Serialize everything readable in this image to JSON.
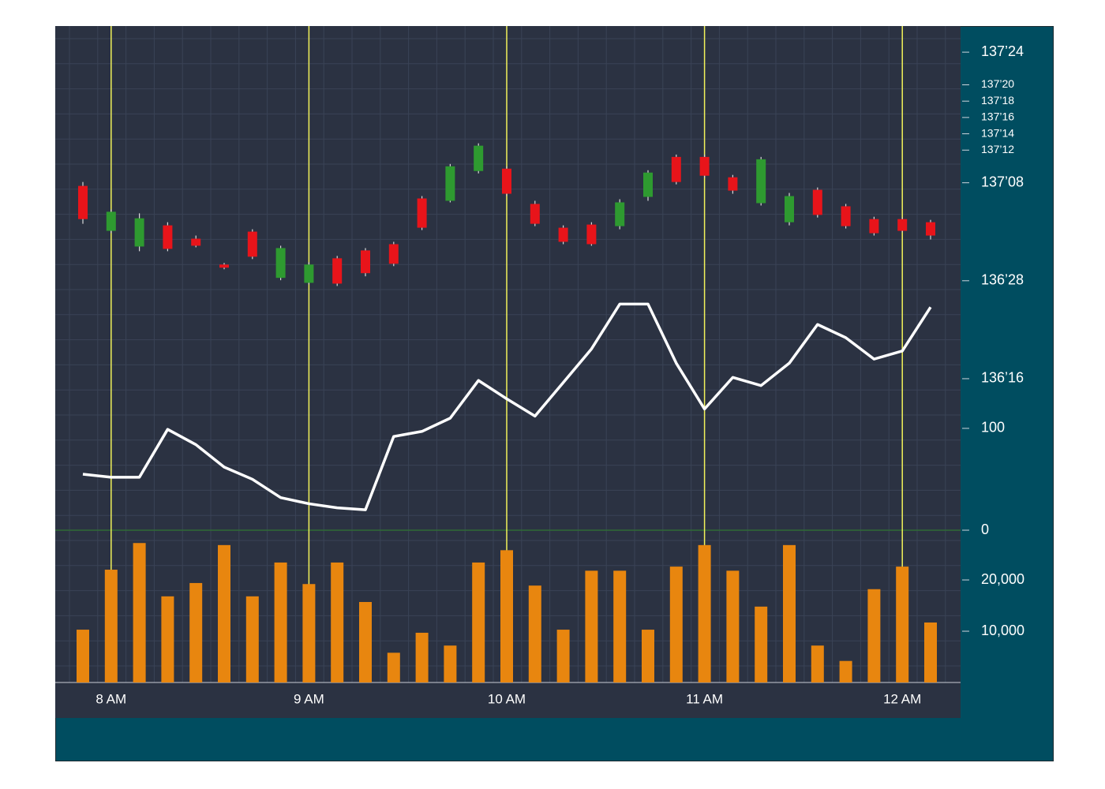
{
  "chart_data": [
    {
      "type": "candlestick",
      "categories": [
        null,
        "8 AM",
        null,
        null,
        null,
        null,
        null,
        null,
        "9 AM",
        null,
        null,
        null,
        null,
        null,
        null,
        "10 AM",
        null,
        null,
        null,
        null,
        null,
        null,
        "11 AM",
        null,
        null,
        null,
        null,
        null,
        null,
        "12 AM",
        null
      ],
      "open": [
        137.238,
        137.066,
        137.006,
        137.087,
        137.036,
        136.937,
        137.063,
        136.886,
        136.867,
        136.961,
        136.991,
        137.015,
        137.19,
        137.181,
        137.295,
        137.304,
        137.169,
        137.078,
        137.09,
        137.084,
        137.196,
        137.349,
        137.349,
        137.271,
        137.172,
        137.099,
        137.223,
        137.16,
        137.111,
        137.111,
        137.099
      ],
      "high": [
        137.253,
        137.148,
        137.133,
        137.099,
        137.048,
        136.943,
        137.072,
        137.009,
        136.946,
        136.97,
        137.0,
        137.024,
        137.199,
        137.322,
        137.401,
        137.313,
        137.181,
        137.087,
        137.099,
        137.187,
        137.298,
        137.358,
        137.358,
        137.28,
        137.349,
        137.211,
        137.232,
        137.169,
        137.12,
        137.117,
        137.108
      ],
      "low": [
        137.093,
        137.057,
        136.988,
        136.988,
        137.003,
        136.919,
        136.958,
        136.877,
        136.861,
        136.855,
        136.892,
        136.931,
        137.069,
        137.175,
        137.286,
        137.199,
        137.084,
        137.015,
        137.009,
        137.072,
        137.181,
        137.244,
        137.268,
        137.208,
        137.163,
        137.087,
        137.117,
        137.075,
        137.048,
        137.06,
        137.033
      ],
      "close": [
        137.111,
        137.139,
        137.114,
        136.997,
        137.009,
        136.925,
        136.967,
        137.0,
        136.937,
        136.864,
        136.904,
        136.94,
        137.078,
        137.313,
        137.392,
        137.208,
        137.093,
        137.024,
        137.015,
        137.175,
        137.289,
        137.253,
        137.277,
        137.22,
        137.34,
        137.199,
        137.127,
        137.084,
        137.057,
        137.066,
        137.048
      ],
      "up_color": "#2e9a30",
      "down_color": "#e8141a",
      "ylim": [
        135.92,
        137.85
      ],
      "yticks": [
        {
          "value": 137.75,
          "label": "137’24"
        },
        {
          "value": 137.625,
          "label": "137’20"
        },
        {
          "value": 137.5625,
          "label": "137’18"
        },
        {
          "value": 137.5,
          "label": "137’16"
        },
        {
          "value": 137.4375,
          "label": "137’14"
        },
        {
          "value": 137.375,
          "label": "137’12"
        },
        {
          "value": 137.25,
          "label": "137’08"
        },
        {
          "value": 136.875,
          "label": "136’28"
        },
        {
          "value": 136.5,
          "label": "136’16"
        }
      ]
    },
    {
      "type": "line",
      "values": [
        55,
        52,
        52,
        99,
        84,
        62,
        50,
        32,
        26,
        22,
        20,
        92,
        97,
        110,
        147,
        129,
        112,
        145,
        178,
        222,
        222,
        164,
        119,
        150,
        142,
        164,
        202,
        189,
        168,
        176,
        219
      ],
      "color": "#ffffff",
      "ylim": [
        0,
        495
      ],
      "yticks": [
        0,
        100
      ]
    },
    {
      "type": "bar",
      "values": [
        10300,
        22000,
        27200,
        16800,
        19400,
        26800,
        16800,
        23400,
        19200,
        23400,
        15700,
        5800,
        9700,
        7200,
        23400,
        25800,
        18900,
        10300,
        21800,
        21800,
        10300,
        22600,
        26800,
        21800,
        14800,
        26800,
        7200,
        4200,
        18200,
        22600,
        11700
      ],
      "color": "#e8860f",
      "ylim": [
        0,
        29700
      ],
      "yticks": [
        {
          "value": 10000,
          "label": "10,000"
        },
        {
          "value": 20000,
          "label": "20,000"
        }
      ]
    }
  ]
}
